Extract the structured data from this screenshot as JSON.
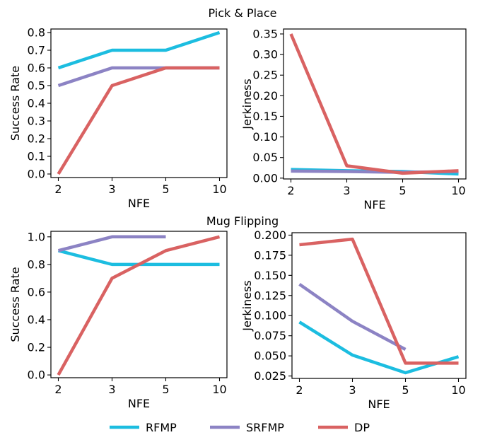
{
  "colors": {
    "RFMP": "#1cbde0",
    "SRFMP": "#8c83c4",
    "DP": "#d96262"
  },
  "legend": {
    "items": [
      "RFMP",
      "SRFMP",
      "DP"
    ]
  },
  "sections": [
    {
      "title": "Pick & Place"
    },
    {
      "title": "Mug Flipping"
    }
  ],
  "chart_data": [
    {
      "type": "line",
      "xlabel": "NFE",
      "ylabel": "Success Rate",
      "categories": [
        "2",
        "3",
        "5",
        "10"
      ],
      "ylim": [
        -0.02,
        0.82
      ],
      "yticks": [
        "0.0",
        "0.1",
        "0.2",
        "0.3",
        "0.4",
        "0.5",
        "0.6",
        "0.7",
        "0.8"
      ],
      "series": [
        {
          "name": "RFMP",
          "values": [
            0.6,
            0.7,
            0.7,
            0.8
          ]
        },
        {
          "name": "SRFMP",
          "values": [
            0.5,
            0.6,
            0.6,
            0.6
          ]
        },
        {
          "name": "DP",
          "values": [
            0.0,
            0.5,
            0.6,
            0.6
          ]
        }
      ]
    },
    {
      "type": "line",
      "xlabel": "NFE",
      "ylabel": "Jerkiness",
      "categories": [
        "2",
        "3",
        "5",
        "10"
      ],
      "ylim": [
        -0.002,
        0.362
      ],
      "yticks": [
        "0.00",
        "0.05",
        "0.10",
        "0.15",
        "0.20",
        "0.25",
        "0.30",
        "0.35"
      ],
      "series": [
        {
          "name": "RFMP",
          "values": [
            0.021,
            0.018,
            0.016,
            0.01
          ]
        },
        {
          "name": "SRFMP",
          "values": [
            0.017,
            0.016,
            0.014,
            0.016
          ]
        },
        {
          "name": "DP",
          "values": [
            0.35,
            0.03,
            0.012,
            0.018
          ]
        }
      ]
    },
    {
      "type": "line",
      "xlabel": "NFE",
      "ylabel": "Success Rate",
      "categories": [
        "2",
        "3",
        "5",
        "10"
      ],
      "ylim": [
        -0.02,
        1.04
      ],
      "yticks": [
        "0.0",
        "0.2",
        "0.4",
        "0.6",
        "0.8",
        "1.0"
      ],
      "series": [
        {
          "name": "RFMP",
          "values": [
            0.9,
            0.8,
            0.8,
            0.8
          ]
        },
        {
          "name": "SRFMP",
          "values": [
            0.9,
            1.0,
            1.0,
            null
          ]
        },
        {
          "name": "DP",
          "values": [
            0.0,
            0.7,
            0.9,
            1.0
          ]
        }
      ]
    },
    {
      "type": "line",
      "xlabel": "NFE",
      "ylabel": "Jerkiness",
      "categories": [
        "2",
        "3",
        "5",
        "10"
      ],
      "ylim": [
        0.022,
        0.203
      ],
      "yticks": [
        "0.025",
        "0.050",
        "0.075",
        "0.100",
        "0.125",
        "0.150",
        "0.175",
        "0.200"
      ],
      "series": [
        {
          "name": "RFMP",
          "values": [
            0.092,
            0.051,
            0.029,
            0.049
          ]
        },
        {
          "name": "SRFMP",
          "values": [
            0.139,
            0.093,
            0.058,
            null
          ]
        },
        {
          "name": "DP",
          "values": [
            0.188,
            0.195,
            0.041,
            0.041
          ]
        }
      ]
    }
  ]
}
